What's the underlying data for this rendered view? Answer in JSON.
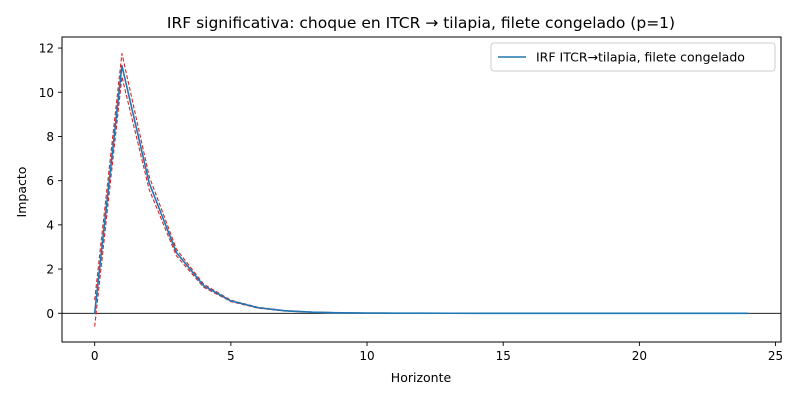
{
  "chart_data": {
    "type": "line",
    "title": "IRF significativa: choque en ITCR → tilapia, filete congelado (p=1)",
    "xlabel": "Horizonte",
    "ylabel": "Impacto",
    "xlim": [
      -1.2,
      25.2
    ],
    "ylim": [
      -1.3,
      12.5
    ],
    "xticks": [
      0,
      5,
      10,
      15,
      20,
      25
    ],
    "yticks": [
      0,
      2,
      4,
      6,
      8,
      10,
      12
    ],
    "x": [
      0,
      1,
      2,
      3,
      4,
      5,
      6,
      7,
      8,
      9,
      10,
      11,
      12,
      13,
      14,
      15,
      16,
      17,
      18,
      19,
      20,
      21,
      22,
      23,
      24
    ],
    "series": [
      {
        "name": "IRF ITCR→tilapia, filete congelado",
        "color": "#1f77b4",
        "style": "solid",
        "values": [
          0.0,
          11.2,
          5.9,
          2.75,
          1.25,
          0.56,
          0.25,
          0.11,
          0.05,
          0.02,
          0.01,
          0.005,
          0.002,
          0.001,
          0.0,
          0.0,
          0.0,
          0.0,
          0.0,
          0.0,
          0.0,
          0.0,
          0.0,
          0.0,
          0.0
        ]
      },
      {
        "name": "",
        "color": "#d62728",
        "style": "dashed",
        "values": [
          -0.6,
          10.7,
          5.6,
          2.6,
          1.18,
          0.53,
          0.23,
          0.1,
          0.045,
          0.02,
          0.009,
          0.004,
          0.002,
          0.001,
          0.0,
          0.0,
          0.0,
          0.0,
          0.0,
          0.0,
          0.0,
          0.0,
          0.0,
          0.0,
          0.0
        ]
      },
      {
        "name": "",
        "color": "#d62728",
        "style": "dashed",
        "values": [
          0.6,
          11.75,
          6.2,
          2.9,
          1.32,
          0.59,
          0.27,
          0.12,
          0.055,
          0.025,
          0.011,
          0.005,
          0.002,
          0.001,
          0.0,
          0.0,
          0.0,
          0.0,
          0.0,
          0.0,
          0.0,
          0.0,
          0.0,
          0.0,
          0.0
        ]
      }
    ],
    "zero_line": true,
    "grid": false,
    "legend": "top-right"
  }
}
